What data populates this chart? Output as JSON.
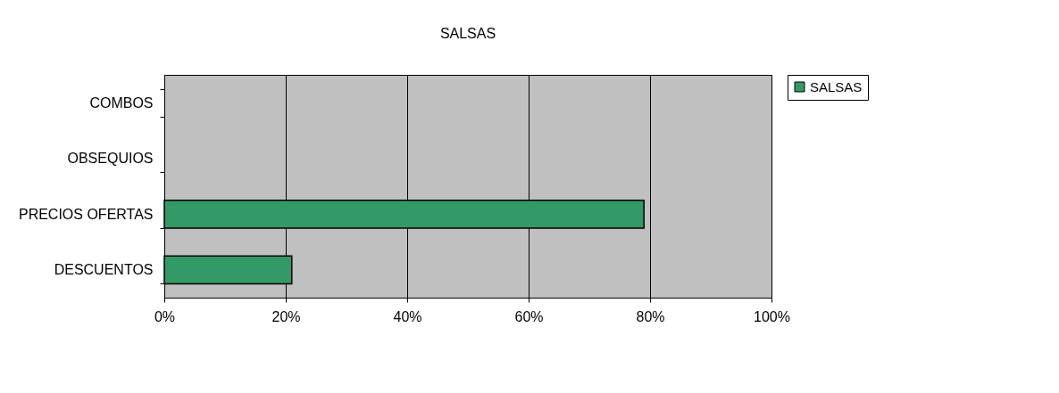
{
  "chart_data": {
    "type": "bar",
    "orientation": "horizontal",
    "title": "SALSAS",
    "categories": [
      "COMBOS",
      "OBSEQUIOS",
      "PRECIOS OFERTAS",
      "DESCUENTOS"
    ],
    "series": [
      {
        "name": "SALSAS",
        "color": "#339966",
        "values": [
          0,
          0,
          79,
          21
        ]
      }
    ],
    "xlim": [
      0,
      100
    ],
    "xticks": [
      {
        "value": 0,
        "label": "0%"
      },
      {
        "value": 20,
        "label": "20%"
      },
      {
        "value": 40,
        "label": "40%"
      },
      {
        "value": 60,
        "label": "60%"
      },
      {
        "value": 80,
        "label": "80%"
      },
      {
        "value": 100,
        "label": "100%"
      }
    ],
    "grid": "x",
    "legend": "right"
  }
}
